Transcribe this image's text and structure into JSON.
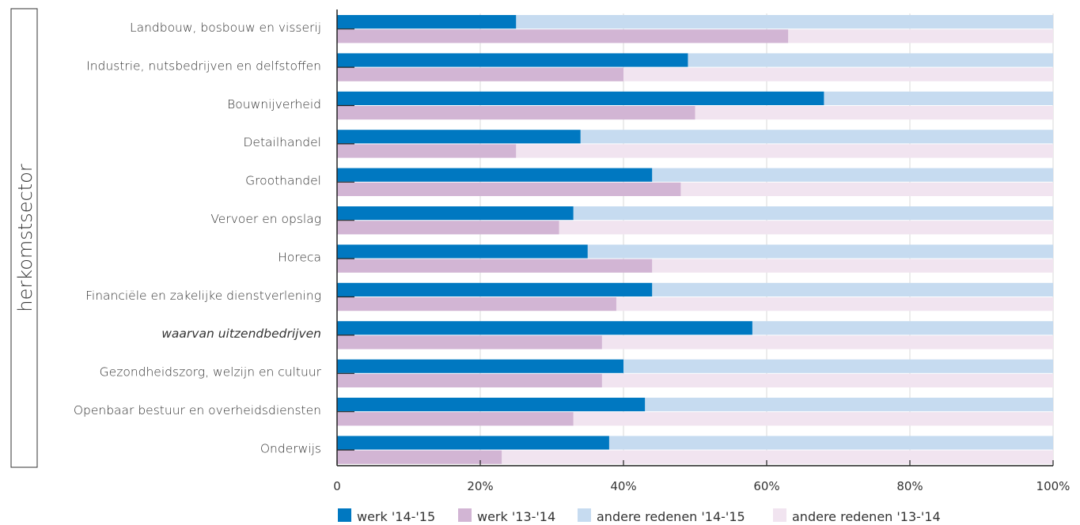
{
  "chart_data": {
    "type": "bar",
    "orientation": "horizontal",
    "stacked": true,
    "percent_stacked": true,
    "ylabel": "herkomstsector",
    "xlim": [
      0,
      100
    ],
    "xticks": [
      "0",
      "20%",
      "40%",
      "60%",
      "80%",
      "100%"
    ],
    "legend_position": "bottom",
    "categories": [
      "Landbouw, bosbouw en visserij",
      "Industrie, nutsbedrijven en delfstoffen",
      "Bouwnijverheid",
      "Detailhandel",
      "Groothandel",
      "Vervoer en opslag",
      "Horeca",
      "Financiële en zakelijke dienstverlening",
      "waarvan uitzendbedrijven",
      "Gezondheidszorg, welzijn en cultuur",
      "Openbaar bestuur en overheidsdiensten",
      "Onderwijs"
    ],
    "italic_categories": [
      "waarvan uitzendbedrijven"
    ],
    "series": [
      {
        "name": "werk '14-'15",
        "color": "#0078c1",
        "values": [
          25,
          49,
          68,
          34,
          44,
          33,
          35,
          44,
          58,
          40,
          43,
          38
        ]
      },
      {
        "name": "werk '13-'14",
        "color": "#d2b5d4",
        "values": [
          63,
          40,
          50,
          25,
          48,
          31,
          44,
          39,
          37,
          37,
          33,
          23
        ]
      },
      {
        "name": "andere redenen '14-'15",
        "color": "#c6dbf0"
      },
      {
        "name": "andere redenen '13-'14",
        "color": "#f1e4f0"
      }
    ]
  }
}
